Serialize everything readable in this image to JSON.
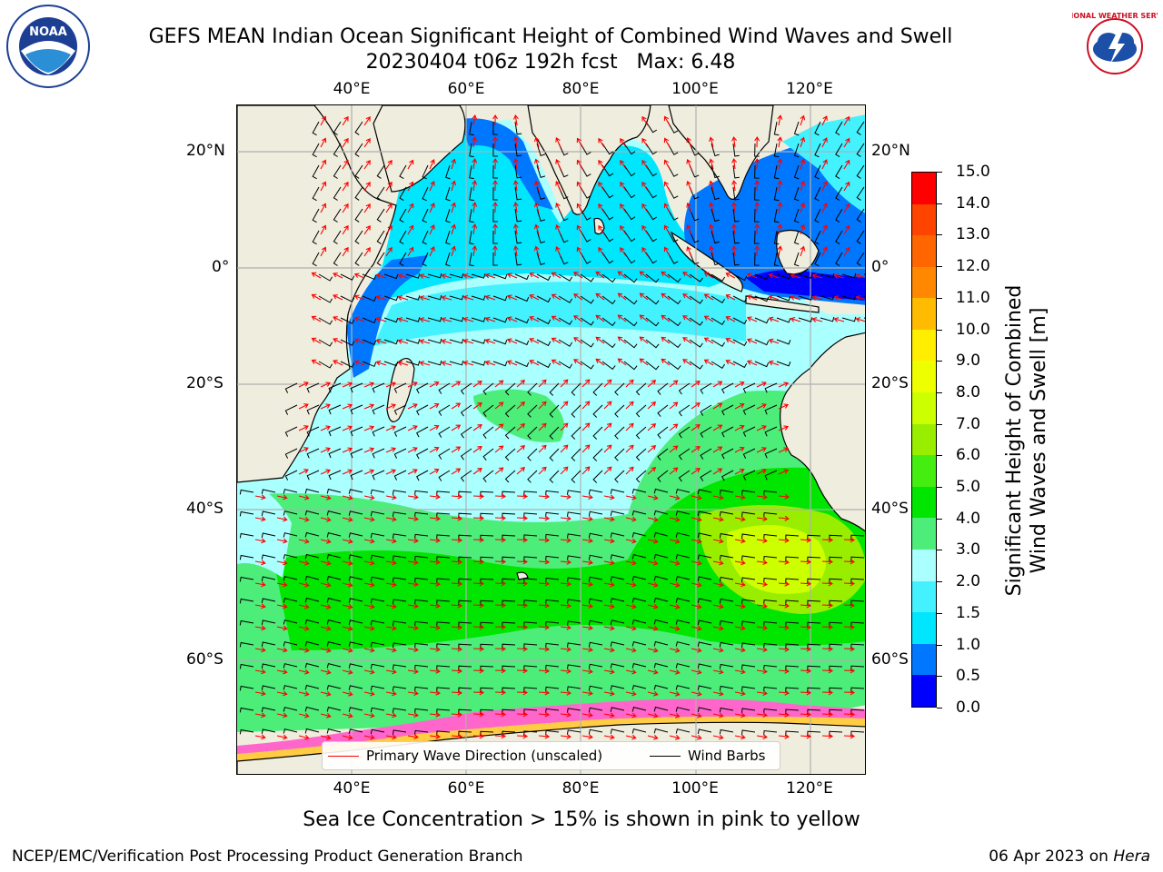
{
  "title": {
    "line1": "GEFS MEAN Indian Ocean Significant Height of Combined Wind Waves and Swell",
    "line2": "20230404 t06z 192h fcst   Max: 6.48"
  },
  "map": {
    "lon_ticks": [
      "40°E",
      "60°E",
      "80°E",
      "100°E",
      "120°E"
    ],
    "lat_ticks": [
      "20°N",
      "0°",
      "20°S",
      "40°S",
      "60°S"
    ],
    "colors": {
      "land": "#efeddd",
      "grid": "#b0b0b0",
      "wave_arrows": "#ff0000",
      "wind_barbs": "#000000"
    }
  },
  "colorbar": {
    "label_line1": "Significant Height of Combined",
    "label_line2": "Wind Waves and Swell [m]",
    "ticks": [
      "0.0",
      "0.5",
      "1.0",
      "1.5",
      "2.0",
      "3.0",
      "4.0",
      "5.0",
      "6.0",
      "7.0",
      "8.0",
      "9.0",
      "10.0",
      "11.0",
      "12.0",
      "13.0",
      "14.0",
      "15.0"
    ],
    "colors": [
      "#0000ff",
      "#0077ff",
      "#00e6ff",
      "#44f2ff",
      "#aaffff",
      "#4ded7a",
      "#00e600",
      "#44ee11",
      "#99ee00",
      "#ccff00",
      "#eeff00",
      "#ffee00",
      "#ffbb00",
      "#ff8800",
      "#ff6600",
      "#ff4400",
      "#ff0000"
    ]
  },
  "legend": {
    "wave_direction": "Primary Wave Direction (unscaled)",
    "wind_barbs": "Wind Barbs"
  },
  "footer": {
    "sea_ice_note": "Sea Ice Concentration > 15% is shown in pink to yellow",
    "credit": "NCEP/EMC/Verification Post Processing Product Generation Branch",
    "date": "06 Apr 2023 on ",
    "host": "Hera"
  },
  "logos": {
    "left": "NOAA",
    "right": "NATIONAL WEATHER SERVICE"
  }
}
